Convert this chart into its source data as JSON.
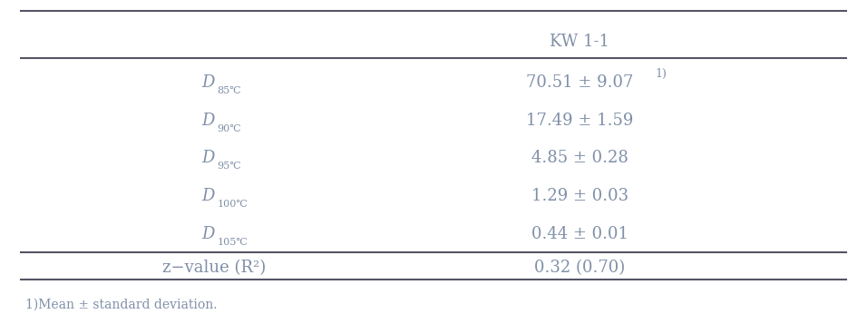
{
  "header": "KW 1-1",
  "rows": [
    {
      "label_main": "D",
      "label_sub": "85℃",
      "value": "70.51 ± 9.07",
      "superscript": "1)"
    },
    {
      "label_main": "D",
      "label_sub": "90℃",
      "value": "17.49 ± 1.59",
      "superscript": ""
    },
    {
      "label_main": "D",
      "label_sub": "95℃",
      "value": "4.85 ± 0.28",
      "superscript": ""
    },
    {
      "label_main": "D",
      "label_sub": "100℃",
      "value": "1.29 ± 0.03",
      "superscript": ""
    },
    {
      "label_main": "D",
      "label_sub": "105℃",
      "value": "0.44 ± 0.01",
      "superscript": ""
    }
  ],
  "zrow": {
    "label": "z−value (R²)",
    "value": "0.32 (0.70)"
  },
  "footnote": "1)Mean ± standard deviation.",
  "text_color": "#8090a8",
  "line_color": "#555566",
  "background_color": "#ffffff"
}
